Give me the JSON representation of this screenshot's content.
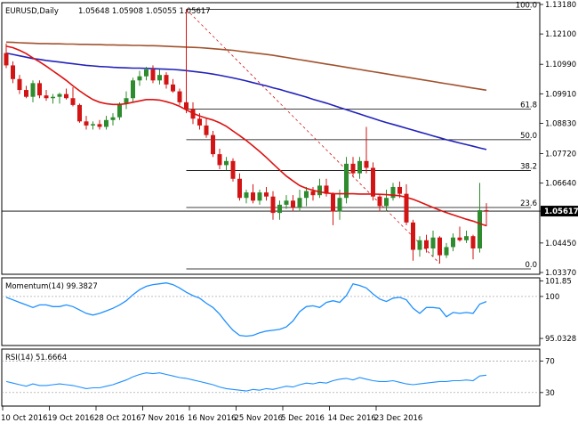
{
  "header": {
    "symbol": "EURUSD,Daily",
    "ohlc": "1.05648 1.05908 1.05055 1.05617"
  },
  "main_panel": {
    "price_axis_labels": [
      "1.13180",
      "1.12100",
      "1.10990",
      "1.09910",
      "1.08830",
      "1.07720",
      "1.06640",
      "1.05617",
      "1.04450",
      "1.03370"
    ],
    "current_price": "1.05617",
    "fib_labels": [
      "100.0",
      "61.8",
      "50.0",
      "38.2",
      "23.6",
      "0.0"
    ]
  },
  "momentum_panel": {
    "title": "Momentum(14) 99.3827",
    "axis_labels": [
      "101.85",
      "100",
      "95.0328"
    ]
  },
  "rsi_panel": {
    "title": "RSI(14) 51.6664",
    "axis_labels": [
      "70",
      "30"
    ]
  },
  "time_axis": {
    "labels": [
      "10 Oct 2016",
      "19 Oct 2016",
      "28 Oct 2016",
      "7 Nov 2016",
      "16 Nov 2016",
      "25 Nov 2016",
      "5 Dec 2016",
      "14 Dec 2016",
      "23 Dec 2016"
    ]
  },
  "colors": {
    "bull": "#2e8b2e",
    "bear": "#d21414",
    "sma_fast": "#dd1111",
    "sma_mid": "#2222bb",
    "sma_slow": "#a0522d",
    "oscillator": "#1e90ff"
  },
  "chart_data": {
    "type": "candlestick",
    "price_range": [
      1.0337,
      1.1318
    ],
    "candles": [
      {
        "o": 1.114,
        "h": 1.1175,
        "l": 1.1085,
        "c": 1.1095
      },
      {
        "o": 1.1095,
        "h": 1.111,
        "l": 1.103,
        "c": 1.1045
      },
      {
        "o": 1.1045,
        "h": 1.106,
        "l": 1.099,
        "c": 1.1005
      },
      {
        "o": 1.1005,
        "h": 1.102,
        "l": 1.0975,
        "c": 1.098
      },
      {
        "o": 1.098,
        "h": 1.104,
        "l": 1.096,
        "c": 1.103
      },
      {
        "o": 1.103,
        "h": 1.104,
        "l": 1.0975,
        "c": 1.0985
      },
      {
        "o": 1.0985,
        "h": 1.1005,
        "l": 1.0965,
        "c": 1.0975
      },
      {
        "o": 1.0975,
        "h": 1.099,
        "l": 1.0955,
        "c": 1.098
      },
      {
        "o": 1.098,
        "h": 1.0995,
        "l": 1.0955,
        "c": 1.099
      },
      {
        "o": 1.099,
        "h": 1.101,
        "l": 1.097,
        "c": 1.0975
      },
      {
        "o": 1.0975,
        "h": 1.1015,
        "l": 1.0945,
        "c": 1.095
      },
      {
        "o": 1.095,
        "h": 1.0955,
        "l": 1.0885,
        "c": 1.089
      },
      {
        "o": 1.089,
        "h": 1.091,
        "l": 1.086,
        "c": 1.0875
      },
      {
        "o": 1.0875,
        "h": 1.089,
        "l": 1.086,
        "c": 1.088
      },
      {
        "o": 1.088,
        "h": 1.0895,
        "l": 1.086,
        "c": 1.087
      },
      {
        "o": 1.087,
        "h": 1.091,
        "l": 1.086,
        "c": 1.0895
      },
      {
        "o": 1.0895,
        "h": 1.092,
        "l": 1.0875,
        "c": 1.0905
      },
      {
        "o": 1.0905,
        "h": 1.096,
        "l": 1.0895,
        "c": 1.0955
      },
      {
        "o": 1.0955,
        "h": 1.1,
        "l": 1.0935,
        "c": 1.0975
      },
      {
        "o": 1.0975,
        "h": 1.105,
        "l": 1.096,
        "c": 1.104
      },
      {
        "o": 1.104,
        "h": 1.1075,
        "l": 1.102,
        "c": 1.1055
      },
      {
        "o": 1.1055,
        "h": 1.109,
        "l": 1.104,
        "c": 1.108
      },
      {
        "o": 1.108,
        "h": 1.1095,
        "l": 1.103,
        "c": 1.104
      },
      {
        "o": 1.104,
        "h": 1.108,
        "l": 1.1025,
        "c": 1.106
      },
      {
        "o": 1.106,
        "h": 1.107,
        "l": 1.101,
        "c": 1.1025
      },
      {
        "o": 1.1025,
        "h": 1.1045,
        "l": 1.0995,
        "c": 1.1
      },
      {
        "o": 1.1,
        "h": 1.101,
        "l": 1.095,
        "c": 1.096
      },
      {
        "o": 1.096,
        "h": 1.13,
        "l": 1.092,
        "c": 1.0935
      },
      {
        "o": 1.0935,
        "h": 1.096,
        "l": 1.088,
        "c": 1.09
      },
      {
        "o": 1.09,
        "h": 1.092,
        "l": 1.086,
        "c": 1.0875
      },
      {
        "o": 1.0875,
        "h": 1.09,
        "l": 1.083,
        "c": 1.084
      },
      {
        "o": 1.084,
        "h": 1.0855,
        "l": 1.076,
        "c": 1.077
      },
      {
        "o": 1.077,
        "h": 1.079,
        "l": 1.0715,
        "c": 1.073
      },
      {
        "o": 1.073,
        "h": 1.076,
        "l": 1.071,
        "c": 1.0745
      },
      {
        "o": 1.0745,
        "h": 1.0755,
        "l": 1.067,
        "c": 1.068
      },
      {
        "o": 1.068,
        "h": 1.07,
        "l": 1.06,
        "c": 1.061
      },
      {
        "o": 1.061,
        "h": 1.064,
        "l": 1.059,
        "c": 1.063
      },
      {
        "o": 1.063,
        "h": 1.066,
        "l": 1.059,
        "c": 1.06
      },
      {
        "o": 1.06,
        "h": 1.064,
        "l": 1.0585,
        "c": 1.063
      },
      {
        "o": 1.063,
        "h": 1.065,
        "l": 1.06,
        "c": 1.0615
      },
      {
        "o": 1.0615,
        "h": 1.0635,
        "l": 1.053,
        "c": 1.0555
      },
      {
        "o": 1.0555,
        "h": 1.06,
        "l": 1.053,
        "c": 1.0585
      },
      {
        "o": 1.0585,
        "h": 1.062,
        "l": 1.057,
        "c": 1.06
      },
      {
        "o": 1.06,
        "h": 1.062,
        "l": 1.056,
        "c": 1.0575
      },
      {
        "o": 1.0575,
        "h": 1.064,
        "l": 1.056,
        "c": 1.061
      },
      {
        "o": 1.061,
        "h": 1.065,
        "l": 1.058,
        "c": 1.0635
      },
      {
        "o": 1.0635,
        "h": 1.065,
        "l": 1.06,
        "c": 1.062
      },
      {
        "o": 1.062,
        "h": 1.068,
        "l": 1.061,
        "c": 1.0655
      },
      {
        "o": 1.0655,
        "h": 1.068,
        "l": 1.0615,
        "c": 1.0625
      },
      {
        "o": 1.0625,
        "h": 1.063,
        "l": 1.051,
        "c": 1.056
      },
      {
        "o": 1.056,
        "h": 1.064,
        "l": 1.053,
        "c": 1.061
      },
      {
        "o": 1.061,
        "h": 1.076,
        "l": 1.059,
        "c": 1.0735
      },
      {
        "o": 1.0735,
        "h": 1.076,
        "l": 1.069,
        "c": 1.07
      },
      {
        "o": 1.07,
        "h": 1.076,
        "l": 1.068,
        "c": 1.0745
      },
      {
        "o": 1.0745,
        "h": 1.087,
        "l": 1.07,
        "c": 1.072
      },
      {
        "o": 1.072,
        "h": 1.074,
        "l": 1.06,
        "c": 1.0615
      },
      {
        "o": 1.0615,
        "h": 1.0625,
        "l": 1.056,
        "c": 1.058
      },
      {
        "o": 1.058,
        "h": 1.064,
        "l": 1.056,
        "c": 1.061
      },
      {
        "o": 1.061,
        "h": 1.0665,
        "l": 1.06,
        "c": 1.065
      },
      {
        "o": 1.065,
        "h": 1.067,
        "l": 1.061,
        "c": 1.0625
      },
      {
        "o": 1.0625,
        "h": 1.066,
        "l": 1.051,
        "c": 1.052
      },
      {
        "o": 1.052,
        "h": 1.053,
        "l": 1.038,
        "c": 1.042
      },
      {
        "o": 1.042,
        "h": 1.047,
        "l": 1.0395,
        "c": 1.0455
      },
      {
        "o": 1.0455,
        "h": 1.0475,
        "l": 1.041,
        "c": 1.0425
      },
      {
        "o": 1.0425,
        "h": 1.049,
        "l": 1.0395,
        "c": 1.0465
      },
      {
        "o": 1.0465,
        "h": 1.047,
        "l": 1.037,
        "c": 1.04
      },
      {
        "o": 1.04,
        "h": 1.0445,
        "l": 1.039,
        "c": 1.043
      },
      {
        "o": 1.043,
        "h": 1.048,
        "l": 1.0415,
        "c": 1.0465
      },
      {
        "o": 1.0465,
        "h": 1.0505,
        "l": 1.045,
        "c": 1.0455
      },
      {
        "o": 1.0455,
        "h": 1.049,
        "l": 1.0445,
        "c": 1.047
      },
      {
        "o": 1.047,
        "h": 1.0475,
        "l": 1.0385,
        "c": 1.0425
      },
      {
        "o": 1.0425,
        "h": 1.0665,
        "l": 1.041,
        "c": 1.0565
      },
      {
        "o": 1.0565,
        "h": 1.0591,
        "l": 1.0506,
        "c": 1.0562
      }
    ],
    "sma_fast": [
      1.1165,
      1.116,
      1.115,
      1.1138,
      1.1122,
      1.1108,
      1.1092,
      1.1075,
      1.1058,
      1.104,
      1.102,
      1.1002,
      1.0985,
      1.097,
      1.096,
      1.0955,
      1.0952,
      1.0952,
      1.0955,
      1.096,
      1.0965,
      1.097,
      1.097,
      1.0968,
      1.0962,
      1.0955,
      1.0945,
      1.0932,
      1.092,
      1.091,
      1.0902,
      1.0895,
      1.0885,
      1.0872,
      1.0855,
      1.0838,
      1.082,
      1.08,
      1.078,
      1.0758,
      1.0735,
      1.0712,
      1.069,
      1.0672,
      1.0655,
      1.0645,
      1.0638,
      1.0632,
      1.0628,
      1.0625,
      1.0625,
      1.0625,
      1.0625,
      1.0624,
      1.0624,
      1.0624,
      1.0623,
      1.0622,
      1.062,
      1.0618,
      1.0612,
      1.0605,
      1.0595,
      1.0585,
      1.0575,
      1.0565,
      1.0556,
      1.0548,
      1.054,
      1.0532,
      1.0525,
      1.0516,
      1.0508
    ],
    "sma_mid": [
      1.114,
      1.1135,
      1.113,
      1.1125,
      1.112,
      1.1117,
      1.1113,
      1.111,
      1.1107,
      1.1104,
      1.1101,
      1.1098,
      1.1095,
      1.1093,
      1.1091,
      1.109,
      1.1088,
      1.1087,
      1.1086,
      1.1085,
      1.1085,
      1.1084,
      1.1083,
      1.1082,
      1.1081,
      1.108,
      1.1078,
      1.1076,
      1.1073,
      1.107,
      1.1067,
      1.1063,
      1.1059,
      1.1054,
      1.1049,
      1.1044,
      1.1038,
      1.1032,
      1.1026,
      1.102,
      1.1013,
      1.1007,
      1.1,
      1.0993,
      1.0986,
      1.0979,
      1.0971,
      1.0964,
      1.0957,
      1.0949,
      1.0941,
      1.0933,
      1.0925,
      1.0917,
      1.0909,
      1.0901,
      1.0893,
      1.0886,
      1.0879,
      1.0872,
      1.0865,
      1.0858,
      1.0851,
      1.0844,
      1.0837,
      1.083,
      1.0823,
      1.0817,
      1.0811,
      1.0805,
      1.0799,
      1.0793,
      1.0787
    ],
    "sma_slow": [
      1.118,
      1.1179,
      1.1178,
      1.1177,
      1.1176,
      1.1175,
      1.1175,
      1.1174,
      1.1174,
      1.1173,
      1.1173,
      1.1172,
      1.1172,
      1.1171,
      1.1171,
      1.117,
      1.117,
      1.1169,
      1.1169,
      1.1168,
      1.1168,
      1.1167,
      1.1167,
      1.1166,
      1.1165,
      1.1164,
      1.1163,
      1.1162,
      1.1161,
      1.116,
      1.1158,
      1.1156,
      1.1154,
      1.1152,
      1.115,
      1.1147,
      1.1144,
      1.1141,
      1.1138,
      1.1135,
      1.1132,
      1.1128,
      1.1124,
      1.112,
      1.1116,
      1.1112,
      1.1108,
      1.1104,
      1.11,
      1.1096,
      1.1092,
      1.1088,
      1.1084,
      1.108,
      1.1076,
      1.1072,
      1.1068,
      1.1064,
      1.106,
      1.1056,
      1.1052,
      1.1048,
      1.1044,
      1.104,
      1.1036,
      1.1032,
      1.1028,
      1.1024,
      1.102,
      1.1016,
      1.1012,
      1.1008,
      1.1004
    ],
    "fib_levels": [
      {
        "label": "100.0",
        "price": 1.13
      },
      {
        "label": "61.8",
        "price": 1.0935
      },
      {
        "label": "50.0",
        "price": 1.0823
      },
      {
        "label": "38.2",
        "price": 1.071
      },
      {
        "label": "23.6",
        "price": 1.0575
      },
      {
        "label": "0.0",
        "price": 1.035
      }
    ],
    "momentum_range": [
      94.3,
      102.1
    ],
    "momentum": [
      99.9,
      99.6,
      99.3,
      99.0,
      98.7,
      99.0,
      99.0,
      98.8,
      98.8,
      99.0,
      98.8,
      98.4,
      98.0,
      97.8,
      98.0,
      98.3,
      98.6,
      99.0,
      99.5,
      100.2,
      100.8,
      101.2,
      101.4,
      101.5,
      101.6,
      101.4,
      101.0,
      100.5,
      100.1,
      99.8,
      99.2,
      98.7,
      97.9,
      96.9,
      96.0,
      95.4,
      95.3,
      95.4,
      95.7,
      95.9,
      96.0,
      96.1,
      96.4,
      97.1,
      98.2,
      98.8,
      98.9,
      98.7,
      99.3,
      99.5,
      99.3,
      100.1,
      101.5,
      101.3,
      101.0,
      100.3,
      99.7,
      99.4,
      99.8,
      99.9,
      99.6,
      98.6,
      98.0,
      98.7,
      98.7,
      98.6,
      97.6,
      98.1,
      98.0,
      98.1,
      98.0,
      99.1,
      99.4
    ],
    "rsi_range": [
      14,
      84
    ],
    "rsi": [
      44,
      42,
      40,
      38,
      41,
      39,
      39,
      40,
      41,
      40,
      39,
      37,
      35,
      36,
      36,
      38,
      40,
      43,
      46,
      50,
      53,
      55,
      54,
      55,
      53,
      51,
      49,
      48,
      46,
      44,
      42,
      40,
      37,
      35,
      34,
      33,
      32,
      34,
      33,
      35,
      34,
      36,
      38,
      37,
      40,
      42,
      41,
      43,
      42,
      45,
      47,
      48,
      46,
      49,
      47,
      45,
      44,
      44,
      45,
      43,
      41,
      40,
      41,
      42,
      43,
      44,
      44,
      45,
      45,
      46,
      45,
      51,
      52
    ]
  }
}
